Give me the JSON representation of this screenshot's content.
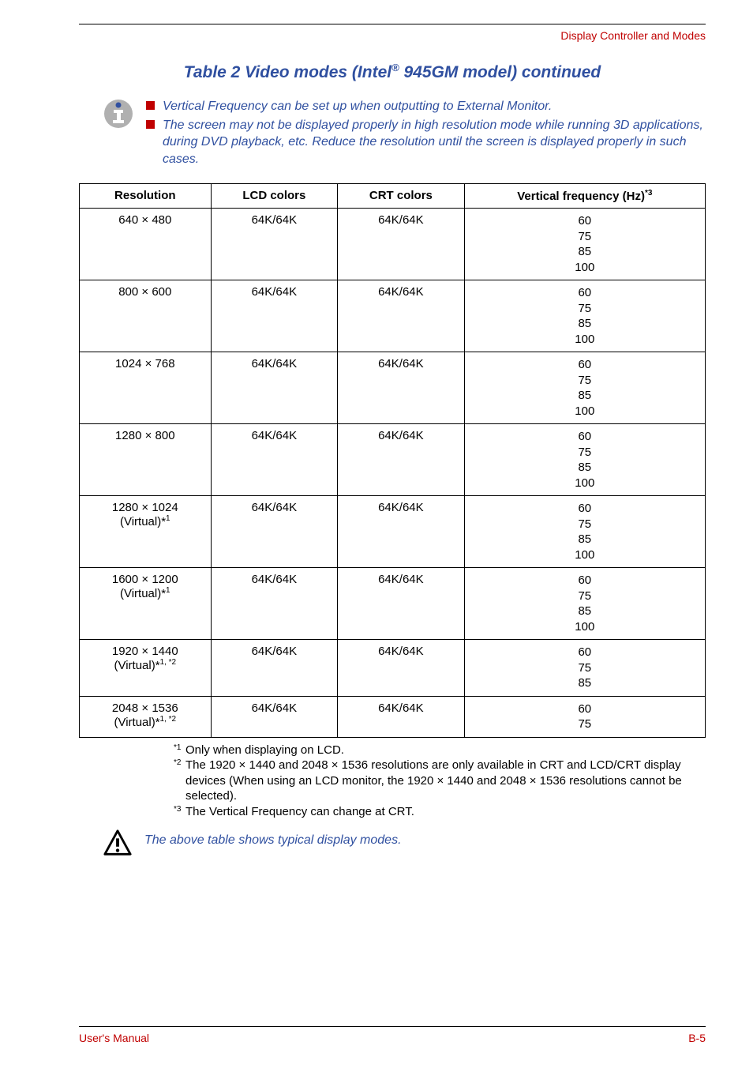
{
  "header": {
    "section_label": "Display Controller and Modes"
  },
  "title": {
    "prefix": "Table 2 Video modes (Intel",
    "sup": "®",
    "suffix": " 945GM model) continued"
  },
  "info_notes": [
    "Vertical Frequency can be set up when outputting to External Monitor.",
    "The screen may not be displayed properly in high resolution mode while running 3D applications, during DVD playback, etc. Reduce the resolution until the screen is displayed properly in such cases."
  ],
  "table": {
    "headers": {
      "resolution": "Resolution",
      "lcd": "LCD colors",
      "crt": "CRT colors",
      "freq": "Vertical frequency (Hz)",
      "freq_sup": "*3"
    },
    "rows": [
      {
        "res": "640 × 480",
        "res_sup": "",
        "lcd": "64K/64K",
        "crt": "64K/64K",
        "freq": "60\n75\n85\n100"
      },
      {
        "res": "800 × 600",
        "res_sup": "",
        "lcd": "64K/64K",
        "crt": "64K/64K",
        "freq": "60\n75\n85\n100"
      },
      {
        "res": "1024 × 768",
        "res_sup": "",
        "lcd": "64K/64K",
        "crt": "64K/64K",
        "freq": "60\n75\n85\n100"
      },
      {
        "res": "1280 × 800",
        "res_sup": "",
        "lcd": "64K/64K",
        "crt": "64K/64K",
        "freq": "60\n75\n85\n100"
      },
      {
        "res": "1280 × 1024\n(Virtual)*",
        "res_sup": "1",
        "lcd": "64K/64K",
        "crt": "64K/64K",
        "freq": "60\n75\n85\n100"
      },
      {
        "res": "1600 × 1200\n(Virtual)*",
        "res_sup": "1",
        "lcd": "64K/64K",
        "crt": "64K/64K",
        "freq": "60\n75\n85\n100"
      },
      {
        "res": "1920 × 1440\n(Virtual)*",
        "res_sup": "1, *2",
        "lcd": "64K/64K",
        "crt": "64K/64K",
        "freq": "60\n75\n85"
      },
      {
        "res": "2048 × 1536\n(Virtual)*",
        "res_sup": "1, *2",
        "lcd": "64K/64K",
        "crt": "64K/64K",
        "freq": "60\n75"
      }
    ]
  },
  "footnotes": [
    {
      "mark": "*1",
      "text": "Only when displaying on LCD."
    },
    {
      "mark": "*2",
      "text": "The 1920 × 1440 and 2048 × 1536 resolutions are only available in CRT and LCD/CRT display devices (When using an LCD monitor, the 1920 × 1440 and 2048 × 1536 resolutions cannot be selected)."
    },
    {
      "mark": "*3",
      "text": "The Vertical Frequency can change at CRT."
    }
  ],
  "warning_text": "The above table shows typical display modes.",
  "footer": {
    "left": "User's Manual",
    "right": "B-5"
  },
  "colors": {
    "red": "#c00000",
    "blue": "#3050a0",
    "gray": "#808080",
    "lightgray": "#b0b0b0"
  }
}
